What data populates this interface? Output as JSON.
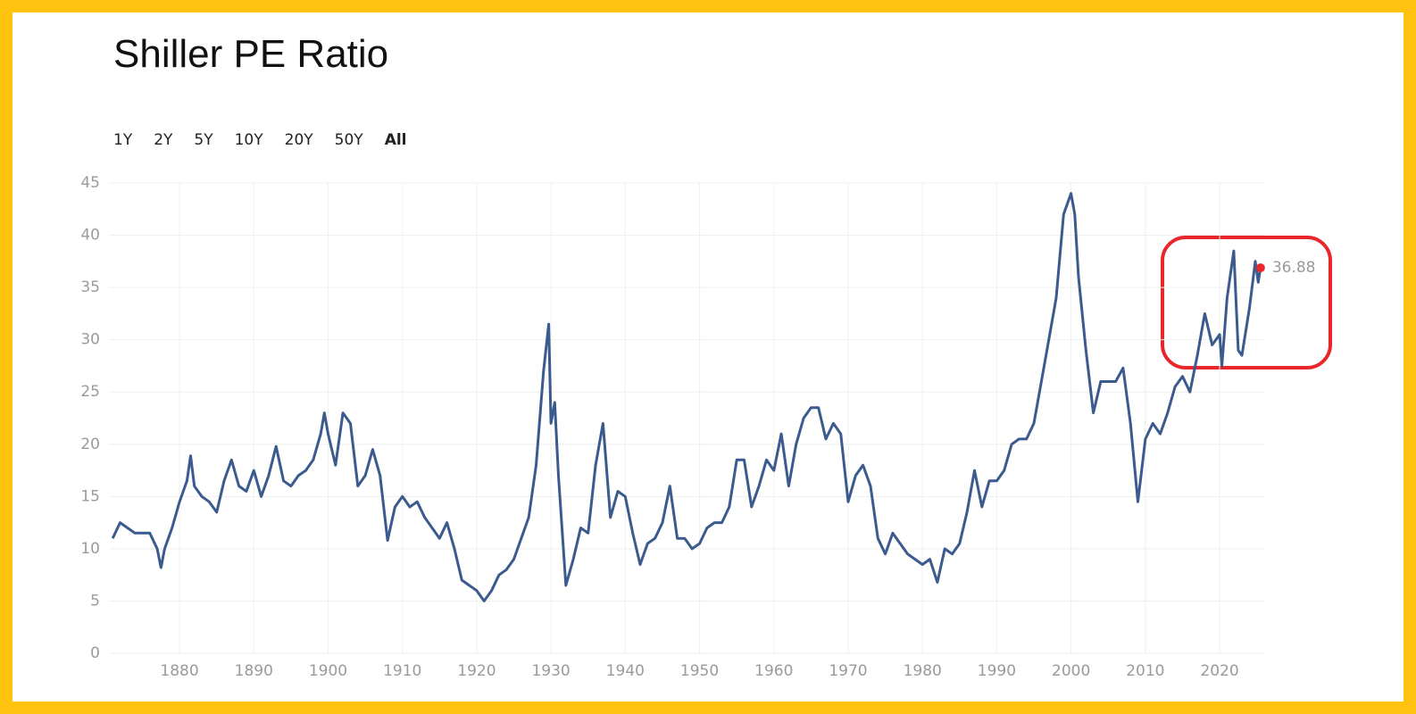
{
  "chart_data": {
    "type": "line",
    "title": "Shiller PE Ratio",
    "range_options": [
      "1Y",
      "2Y",
      "5Y",
      "10Y",
      "20Y",
      "50Y",
      "All"
    ],
    "selected_range": "All",
    "color": "#3b5a8d",
    "highlight_color": "#e8262b",
    "grid": true,
    "x": [
      1871,
      1872,
      1873,
      1874,
      1875,
      1876,
      1877,
      1877.5,
      1878,
      1879,
      1880,
      1881,
      1881.5,
      1882,
      1883,
      1884,
      1885,
      1886,
      1887,
      1888,
      1889,
      1890,
      1891,
      1892,
      1893,
      1894,
      1895,
      1896,
      1897,
      1898,
      1899,
      1899.5,
      1900,
      1901,
      1902,
      1903,
      1904,
      1905,
      1906,
      1907,
      1908,
      1909,
      1910,
      1911,
      1912,
      1913,
      1914,
      1915,
      1916,
      1917,
      1918,
      1919,
      1920,
      1921,
      1922,
      1923,
      1924,
      1925,
      1926,
      1927,
      1928,
      1929,
      1929.7,
      1930,
      1930.5,
      1931,
      1932,
      1933,
      1934,
      1935,
      1936,
      1937,
      1938,
      1939,
      1940,
      1941,
      1942,
      1943,
      1944,
      1945,
      1946,
      1947,
      1948,
      1949,
      1950,
      1951,
      1952,
      1953,
      1954,
      1955,
      1956,
      1957,
      1958,
      1959,
      1960,
      1961,
      1962,
      1963,
      1964,
      1965,
      1966,
      1967,
      1968,
      1969,
      1970,
      1971,
      1972,
      1973,
      1974,
      1975,
      1976,
      1977,
      1978,
      1979,
      1980,
      1981,
      1982,
      1983,
      1984,
      1985,
      1986,
      1987,
      1988,
      1989,
      1990,
      1991,
      1992,
      1993,
      1994,
      1995,
      1996,
      1997,
      1998,
      1999,
      2000,
      2000.5,
      2001,
      2002,
      2003,
      2004,
      2005,
      2006,
      2007,
      2008,
      2009,
      2010,
      2011,
      2012,
      2013,
      2014,
      2015,
      2016,
      2017,
      2018,
      2019,
      2020,
      2020.3,
      2021,
      2021.9,
      2022.5,
      2023,
      2024,
      2024.8,
      2025.2,
      2025.5
    ],
    "values": [
      11,
      12.5,
      12,
      11.5,
      11.5,
      11.5,
      10,
      8.2,
      10,
      12,
      14.5,
      16.5,
      18.9,
      16,
      15,
      14.5,
      13.5,
      16.5,
      18.5,
      16,
      15.5,
      17.5,
      15,
      17,
      19.8,
      16.5,
      16,
      17,
      17.5,
      18.5,
      21,
      23,
      21,
      18,
      23,
      22,
      16,
      17,
      19.5,
      17,
      10.8,
      14,
      15,
      14,
      14.5,
      13,
      12,
      11,
      12.5,
      10,
      7,
      6.5,
      6,
      5,
      6,
      7.5,
      8,
      9,
      11,
      13,
      18,
      27,
      31.5,
      22,
      24,
      17,
      6.5,
      9,
      12,
      11.5,
      18,
      22,
      13,
      15.5,
      15,
      11.5,
      8.5,
      10.5,
      11,
      12.5,
      16,
      11,
      11,
      10,
      10.5,
      12,
      12.5,
      12.5,
      14,
      18.5,
      18.5,
      14,
      16,
      18.5,
      17.5,
      21,
      16,
      20,
      22.5,
      23.5,
      23.5,
      20.5,
      22,
      21,
      14.5,
      17,
      18,
      16,
      11,
      9.5,
      11.5,
      10.5,
      9.5,
      9,
      8.5,
      9,
      6.8,
      10,
      9.5,
      10.5,
      13.5,
      17.5,
      14,
      16.5,
      16.5,
      17.5,
      20,
      20.5,
      20.5,
      22,
      26,
      30,
      34,
      42,
      44,
      42,
      36,
      29,
      23,
      26,
      26,
      26,
      27.3,
      22,
      14.5,
      20.5,
      22,
      21,
      23,
      25.5,
      26.5,
      25,
      28.5,
      32.5,
      29.5,
      30.5,
      27.5,
      34,
      38.5,
      29,
      28.5,
      33,
      37.5,
      35.5,
      36.88
    ],
    "xlim": [
      1870.5,
      2026
    ],
    "xticks": [
      1880,
      1890,
      1900,
      1910,
      1920,
      1930,
      1940,
      1950,
      1960,
      1970,
      1980,
      1990,
      2000,
      2010,
      2020
    ],
    "ylim": [
      0,
      45
    ],
    "yticks": [
      0,
      5,
      10,
      15,
      20,
      25,
      30,
      35,
      40,
      45
    ]
  }
}
